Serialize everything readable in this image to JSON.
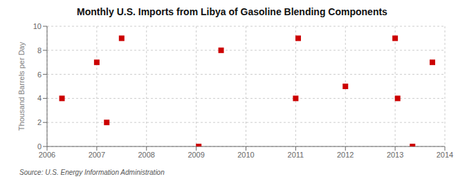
{
  "chart_data": {
    "type": "scatter",
    "title": "Monthly U.S. Imports from Libya of Gasoline Blending Components",
    "ylabel": "Thousand Barrels per Day",
    "annotation": "Source: U.S. Energy Information Administration",
    "x": [
      2006.3,
      2007.0,
      2007.2,
      2007.5,
      2009.05,
      2009.5,
      2011.0,
      2011.05,
      2012.0,
      2013.0,
      2013.05,
      2013.35,
      2013.75
    ],
    "values": [
      4,
      7,
      2,
      9,
      0,
      8,
      4,
      9,
      5,
      9,
      4,
      0,
      7
    ],
    "color": "#cc0000",
    "marker": "square",
    "xlim": [
      2006,
      2014
    ],
    "ylim": [
      0,
      10
    ],
    "xticks": [
      2006,
      2007,
      2008,
      2009,
      2010,
      2011,
      2012,
      2013,
      2014
    ],
    "yticks": [
      0,
      2,
      4,
      6,
      8,
      10
    ],
    "grid": true
  }
}
